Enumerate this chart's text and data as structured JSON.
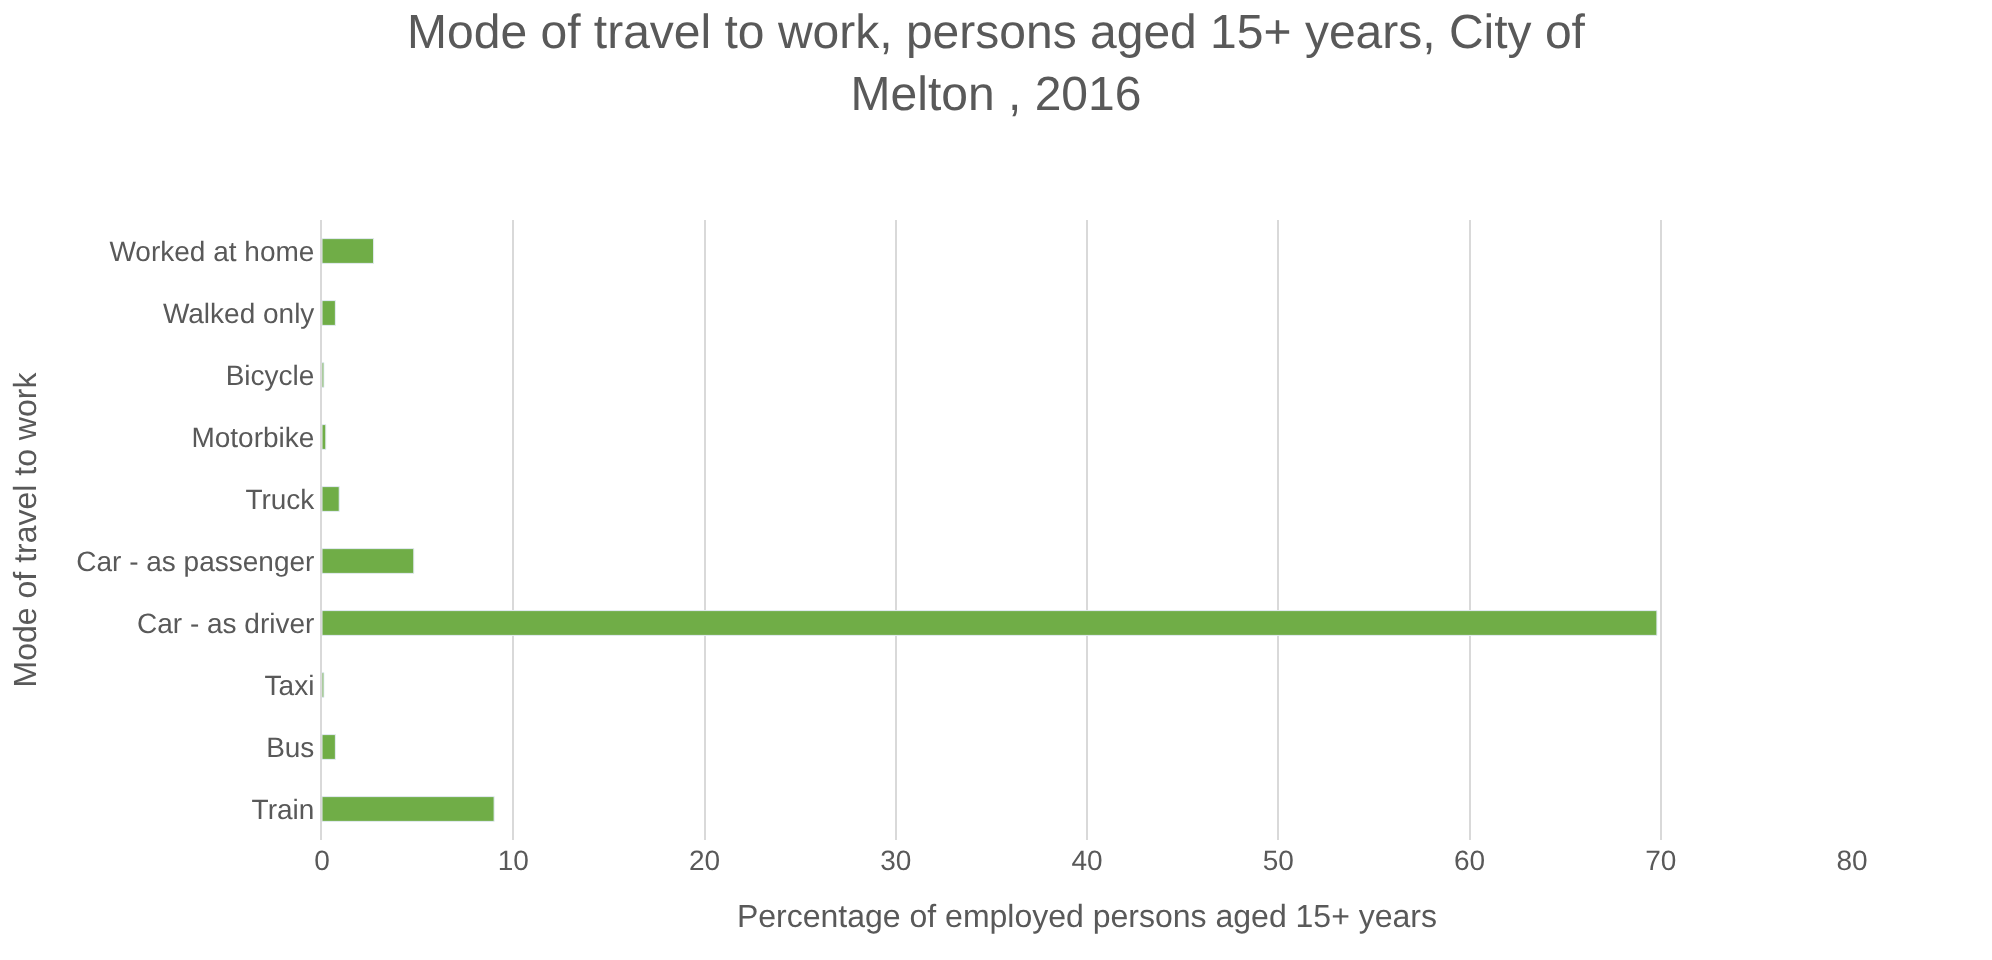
{
  "chart_data": {
    "type": "bar",
    "orientation": "horizontal",
    "title": "Mode of travel to work, persons aged 15+ years, City of\nMelton , 2016",
    "xlabel": "Percentage of employed persons aged 15+ years",
    "ylabel": "Mode of travel to work",
    "categories": [
      "Worked at home",
      "Walked only",
      "Bicycle",
      "Motorbike",
      "Truck",
      "Car - as passenger",
      "Car - as driver",
      "Taxi",
      "Bus",
      "Train"
    ],
    "values": [
      2.7,
      0.7,
      0.1,
      0.2,
      0.9,
      4.8,
      69.8,
      0.1,
      0.7,
      9.0
    ],
    "color": "#70ad47",
    "xlim": [
      0,
      80
    ],
    "xticks": [
      0,
      10,
      20,
      30,
      40,
      50,
      60,
      70,
      80
    ],
    "grid": "x"
  }
}
